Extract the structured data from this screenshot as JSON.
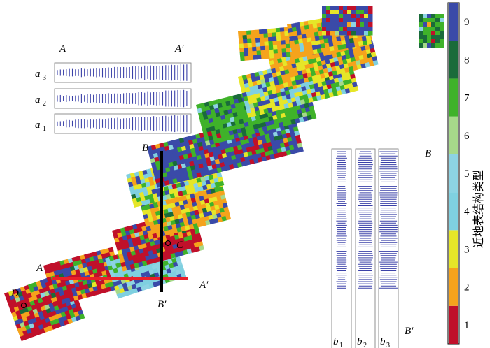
{
  "map": {
    "labels": {
      "a_left": "A",
      "a_right": "A′",
      "b_top": "B",
      "b_bottom": "B′",
      "c_point": "C",
      "d_point": "D",
      "a_cross_left": "A",
      "a_cross_right": "A′",
      "b_panel_top": "B",
      "b_panel_bottom": "B′"
    },
    "panels_a": [
      {
        "main": "a",
        "sub": "3"
      },
      {
        "main": "a",
        "sub": "2"
      },
      {
        "main": "a",
        "sub": "1"
      }
    ],
    "panels_b": [
      {
        "main": "b",
        "sub": "1"
      },
      {
        "main": "b",
        "sub": "2"
      },
      {
        "main": "b",
        "sub": "3"
      }
    ]
  },
  "legend": {
    "title": "近地表结构类型",
    "classes": [
      {
        "value": "1",
        "color": "#c0102a"
      },
      {
        "value": "2",
        "color": "#f5a31c"
      },
      {
        "value": "3",
        "color": "#e6e628"
      },
      {
        "value": "4",
        "color": "#7fd0e0"
      },
      {
        "value": "5",
        "color": "#8dd3e3"
      },
      {
        "value": "6",
        "color": "#a6d98a"
      },
      {
        "value": "7",
        "color": "#3fb22a"
      },
      {
        "value": "8",
        "color": "#1a6b3a"
      },
      {
        "value": "9",
        "color": "#3a4aa8"
      }
    ]
  },
  "colors": {
    "profile_a": "#e8202a",
    "profile_b": "#000000",
    "trace": "#3a40a8"
  }
}
